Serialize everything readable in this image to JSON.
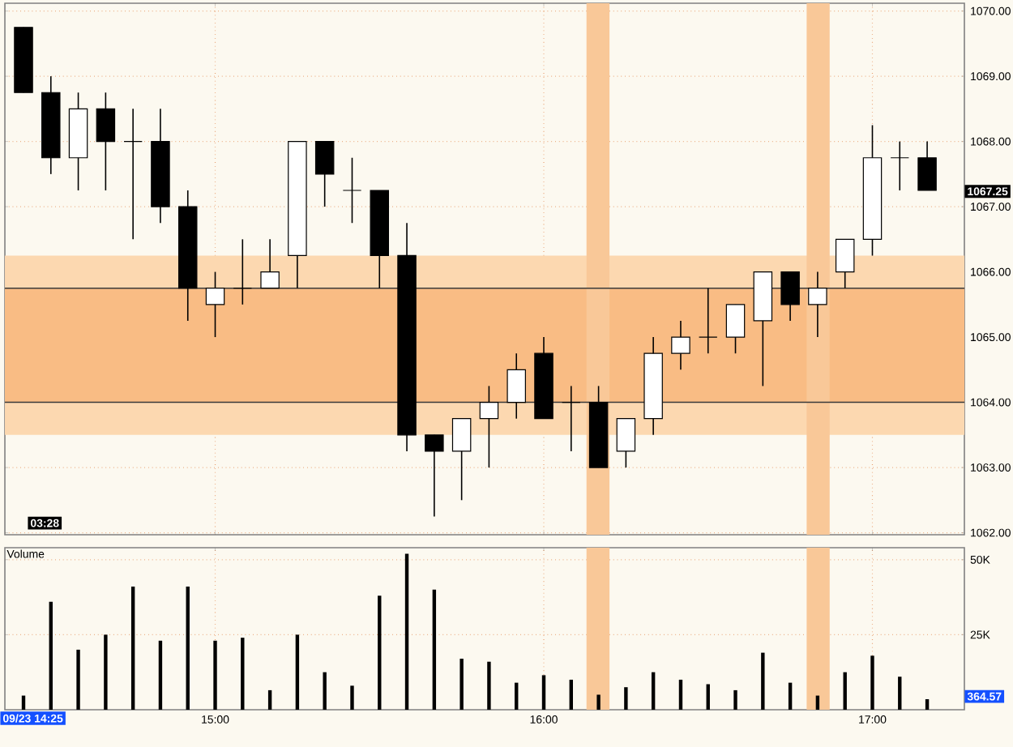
{
  "chart_data": [
    {
      "type": "candlestick",
      "x": [
        14.4167,
        14.5,
        14.5833,
        14.6667,
        14.75,
        14.8333,
        14.9167,
        15,
        15.0833,
        15.1667,
        15.25,
        15.3333,
        15.4167,
        15.5,
        15.5833,
        15.6667,
        15.75,
        15.8333,
        15.9167,
        16,
        16.0833,
        16.1667,
        16.25,
        16.3333,
        16.4167,
        16.5,
        16.5833,
        16.6667,
        16.75,
        16.8333,
        16.9167,
        17,
        17.0833,
        17.1667
      ],
      "ohlc": [
        [
          1069.75,
          1069.75,
          1068.75,
          1068.75
        ],
        [
          1068.75,
          1069,
          1067.5,
          1067.75
        ],
        [
          1067.75,
          1068.75,
          1067.25,
          1068.5
        ],
        [
          1068.5,
          1068.75,
          1067.25,
          1068
        ],
        [
          1068,
          1068.5,
          1066.5,
          1068
        ],
        [
          1068,
          1068.5,
          1066.75,
          1067
        ],
        [
          1067,
          1067.25,
          1065.25,
          1065.75
        ],
        [
          1065.5,
          1066,
          1065,
          1065.75
        ],
        [
          1065.75,
          1066.5,
          1065.5,
          1065.75
        ],
        [
          1065.75,
          1066.5,
          1065.75,
          1066
        ],
        [
          1066.25,
          1068,
          1065.75,
          1068
        ],
        [
          1068,
          1068,
          1067,
          1067.5
        ],
        [
          1067.25,
          1067.75,
          1066.75,
          1067.25
        ],
        [
          1067.25,
          1067.25,
          1065.75,
          1066.25
        ],
        [
          1066.25,
          1066.75,
          1063.25,
          1063.5
        ],
        [
          1063.5,
          1063.5,
          1062.25,
          1063.25
        ],
        [
          1063.25,
          1063.75,
          1062.5,
          1063.75
        ],
        [
          1063.75,
          1064.25,
          1063,
          1064
        ],
        [
          1064,
          1064.75,
          1063.75,
          1064.5
        ],
        [
          1064.75,
          1065,
          1063.75,
          1063.75
        ],
        [
          1064,
          1064.25,
          1063.25,
          1064
        ],
        [
          1064,
          1064.25,
          1063,
          1063
        ],
        [
          1063.25,
          1063.75,
          1063,
          1063.75
        ],
        [
          1063.75,
          1065,
          1063.5,
          1064.75
        ],
        [
          1064.75,
          1065.25,
          1064.5,
          1065
        ],
        [
          1065,
          1065.75,
          1064.75,
          1065
        ],
        [
          1065,
          1065.5,
          1064.75,
          1065.5
        ],
        [
          1065.25,
          1066,
          1064.25,
          1066
        ],
        [
          1066,
          1066,
          1065.25,
          1065.5
        ],
        [
          1065.5,
          1066,
          1065,
          1065.75
        ],
        [
          1066,
          1066.5,
          1065.75,
          1066.5
        ],
        [
          1066.5,
          1068.25,
          1066.25,
          1067.75
        ],
        [
          1067.75,
          1068,
          1067.25,
          1067.75
        ],
        [
          1067.75,
          1068,
          1067.25,
          1067.25
        ]
      ],
      "xlim": [
        14.36,
        17.28
      ],
      "ylim": [
        1061.97,
        1070.12
      ],
      "xticks": [
        {
          "value": 15,
          "label": null
        },
        {
          "value": 16,
          "label": null
        },
        {
          "value": 17,
          "label": null
        }
      ],
      "yticks": [
        {
          "value": 1062,
          "label": "1062.00"
        },
        {
          "value": 1063,
          "label": "1063.00"
        },
        {
          "value": 1064,
          "label": "1064.00"
        },
        {
          "value": 1065,
          "label": "1065.00"
        },
        {
          "value": 1066,
          "label": "1066.00"
        },
        {
          "value": 1067,
          "label": "1067.00"
        },
        {
          "value": 1068,
          "label": "1068.00"
        },
        {
          "value": 1069,
          "label": "1069.00"
        },
        {
          "value": 1070,
          "label": "1070.00"
        }
      ],
      "tick_labels": "y",
      "grid": true,
      "bands": [
        {
          "axis": "y",
          "from": 1063.5,
          "to": 1066.25,
          "color": "#fcd8b0"
        },
        {
          "axis": "y",
          "from": 1064,
          "to": 1065.75,
          "color": "#f9bc84"
        },
        {
          "axis": "x",
          "from": 16.13,
          "to": 16.2,
          "color": "#f9c898"
        },
        {
          "axis": "x",
          "from": 16.8,
          "to": 16.87,
          "color": "#f9c898"
        }
      ],
      "ref_lines": [
        {
          "axis": "y",
          "value": 1065.75,
          "color": "#3a3a3a"
        },
        {
          "axis": "y",
          "value": 1064,
          "color": "#3a3a3a"
        }
      ],
      "annotations": [
        "03:28",
        "1067.25"
      ]
    },
    {
      "type": "bar",
      "title": "Volume",
      "x": [
        14.4167,
        14.5,
        14.5833,
        14.6667,
        14.75,
        14.8333,
        14.9167,
        15,
        15.0833,
        15.1667,
        15.25,
        15.3333,
        15.4167,
        15.5,
        15.5833,
        15.6667,
        15.75,
        15.8333,
        15.9167,
        16,
        16.0833,
        16.1667,
        16.25,
        16.3333,
        16.4167,
        16.5,
        16.5833,
        16.6667,
        16.75,
        16.8333,
        16.9167,
        17,
        17.0833,
        17.1667
      ],
      "values": [
        4700,
        36000,
        20000,
        25000,
        41000,
        23000,
        41000,
        23000,
        24000,
        6500,
        25000,
        12500,
        8000,
        38000,
        52000,
        40000,
        17000,
        16000,
        9000,
        11500,
        10000,
        5000,
        7500,
        12500,
        10000,
        8500,
        6500,
        19000,
        9000,
        4700,
        12500,
        18000,
        11000,
        3500
      ],
      "color": "#000000",
      "xlim": [
        14.36,
        17.28
      ],
      "ylim": [
        0,
        54000
      ],
      "xticks": [
        {
          "value": 15,
          "label": "15:00"
        },
        {
          "value": 16,
          "label": "16:00"
        },
        {
          "value": 17,
          "label": "17:00"
        }
      ],
      "yticks": [
        {
          "value": 25000,
          "label": "25K"
        },
        {
          "value": 50000,
          "label": "50K"
        }
      ],
      "grid": true,
      "bands": [
        {
          "axis": "x",
          "from": 16.13,
          "to": 16.2,
          "color": "#f9c898"
        },
        {
          "axis": "x",
          "from": 16.8,
          "to": 16.87,
          "color": "#f9c898"
        }
      ],
      "annotations": [
        "09/23 14:25",
        "364.57"
      ]
    }
  ]
}
